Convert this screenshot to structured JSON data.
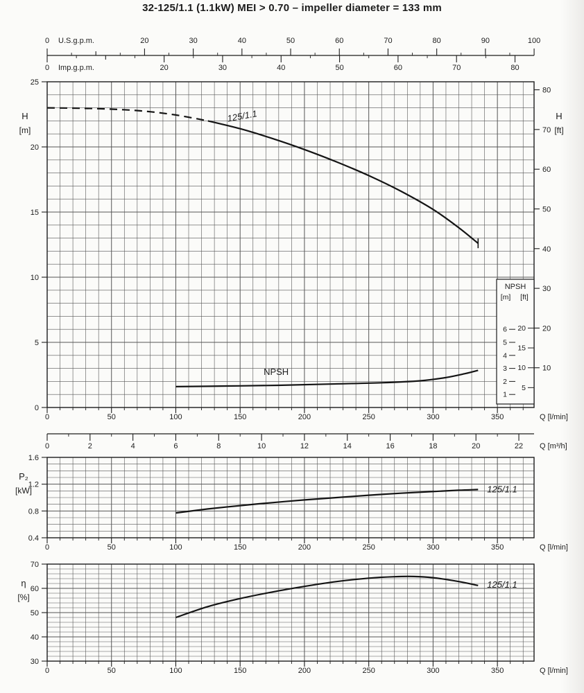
{
  "page": {
    "title": "32-125/1.1 (1.1kW) MEI > 0.70 – impeller diameter = 133 mm"
  },
  "colors": {
    "paper": "#fbfbf9",
    "ink": "#1c1c1c",
    "grid": "#555555",
    "curve": "#141414"
  },
  "chart_data": {
    "type": "line",
    "title": "32-125/1.1 (1.1kW) MEI > 0.70 – impeller diameter = 133 mm",
    "x_main": {
      "label": "Q [l/min]",
      "xlim": [
        0,
        378.5
      ],
      "ticks": [
        0,
        50,
        100,
        150,
        200,
        250,
        300,
        350
      ],
      "minor_step": 10
    },
    "scale_bars": [
      {
        "id": "usgpm",
        "name": "U.S.g.p.m.",
        "lmin_per_unit": 3.78541,
        "ticks": [
          0,
          10,
          20,
          30,
          40,
          50,
          60,
          70,
          80,
          90,
          100
        ],
        "labeled": [
          0,
          20,
          30,
          40,
          50,
          60,
          70,
          80,
          90,
          100
        ],
        "minor_step": 5
      },
      {
        "id": "impgpm",
        "name": "Imp.g.p.m.",
        "lmin_per_unit": 4.54609,
        "ticks": [
          0,
          10,
          20,
          30,
          40,
          50,
          60,
          70,
          80
        ],
        "labeled": [
          0,
          20,
          30,
          40,
          50,
          60,
          70,
          80
        ],
        "minor_step": 5
      },
      {
        "id": "m3h",
        "name": "Q [m³/h]",
        "lmin_per_unit": 16.6667,
        "ticks": [
          0,
          2,
          4,
          6,
          8,
          10,
          12,
          14,
          16,
          18,
          20,
          22
        ],
        "labeled": [
          0,
          2,
          4,
          6,
          8,
          10,
          12,
          14,
          16,
          18,
          20,
          22
        ],
        "minor_step": 1
      }
    ],
    "panels": [
      {
        "id": "head",
        "ylabel_lines": [
          "H",
          "[m]"
        ],
        "y2label_lines": [
          "H",
          "[ft]"
        ],
        "ylim": [
          0,
          25
        ],
        "yticks": [
          0,
          5,
          10,
          15,
          20,
          25
        ],
        "y2lim": [
          0,
          82.02
        ],
        "y2ticks": [
          10,
          20,
          30,
          40,
          50,
          60,
          70,
          80
        ],
        "grid_y_step": 1,
        "xlabel": "Q [l/min]",
        "series": [
          {
            "name": "125/1.1",
            "label": "125/1.1",
            "label_q": 152,
            "label_y": 22.35,
            "label_angle": -10,
            "label_style": "italic",
            "dash_until": 125,
            "end_tick": true,
            "points": [
              [
                0,
                23.0
              ],
              [
                25,
                22.97
              ],
              [
                50,
                22.9
              ],
              [
                75,
                22.75
              ],
              [
                100,
                22.45
              ],
              [
                125,
                22.0
              ],
              [
                150,
                21.4
              ],
              [
                175,
                20.65
              ],
              [
                200,
                19.8
              ],
              [
                225,
                18.85
              ],
              [
                250,
                17.8
              ],
              [
                275,
                16.6
              ],
              [
                300,
                15.2
              ],
              [
                320,
                13.8
              ],
              [
                335,
                12.6
              ]
            ]
          },
          {
            "name": "NPSH",
            "label": "NPSH",
            "label_q": 178,
            "label_y": 2.7,
            "label_style": "plain",
            "points": [
              [
                100,
                1.6
              ],
              [
                140,
                1.65
              ],
              [
                180,
                1.7
              ],
              [
                220,
                1.8
              ],
              [
                260,
                1.9
              ],
              [
                290,
                2.05
              ],
              [
                310,
                2.3
              ],
              [
                325,
                2.6
              ],
              [
                335,
                2.85
              ]
            ]
          }
        ],
        "npsh_box": {
          "title": "NPSH",
          "col_headers": [
            "[m]",
            "[ft]"
          ],
          "m_ticks": [
            1,
            2,
            3,
            4,
            5,
            6
          ],
          "ft_ticks": [
            5,
            10,
            15,
            20
          ]
        }
      },
      {
        "id": "power",
        "ylabel_lines": [
          "P₂",
          "[kW]"
        ],
        "ylim": [
          0.4,
          1.6
        ],
        "yticks": [
          0.4,
          0.8,
          1.2,
          1.6
        ],
        "grid_y_step": 0.1,
        "xlabel": "Q [l/min]",
        "series": [
          {
            "name": "125/1.1",
            "label": "125/1.1",
            "label_q": 342,
            "label_y": 1.12,
            "label_anchor": "start",
            "label_style": "italic",
            "points": [
              [
                100,
                0.77
              ],
              [
                125,
                0.83
              ],
              [
                150,
                0.88
              ],
              [
                175,
                0.925
              ],
              [
                200,
                0.965
              ],
              [
                225,
                1.0
              ],
              [
                250,
                1.035
              ],
              [
                275,
                1.065
              ],
              [
                300,
                1.09
              ],
              [
                320,
                1.11
              ],
              [
                335,
                1.12
              ]
            ]
          }
        ]
      },
      {
        "id": "eff",
        "ylabel_lines": [
          "η",
          "[%]"
        ],
        "ylim": [
          30,
          70
        ],
        "yticks": [
          30,
          40,
          50,
          60,
          70
        ],
        "grid_y_step": 2,
        "xlabel": "Q [l/min]",
        "series": [
          {
            "name": "125/1.1",
            "label": "125/1.1",
            "label_q": 342,
            "label_y": 61.5,
            "label_anchor": "start",
            "label_style": "italic",
            "points": [
              [
                100,
                48
              ],
              [
                125,
                52.5
              ],
              [
                150,
                55.8
              ],
              [
                175,
                58.5
              ],
              [
                200,
                60.8
              ],
              [
                225,
                62.8
              ],
              [
                250,
                64.2
              ],
              [
                270,
                64.8
              ],
              [
                285,
                64.9
              ],
              [
                300,
                64.4
              ],
              [
                320,
                62.8
              ],
              [
                335,
                61.2
              ]
            ]
          }
        ]
      }
    ]
  }
}
